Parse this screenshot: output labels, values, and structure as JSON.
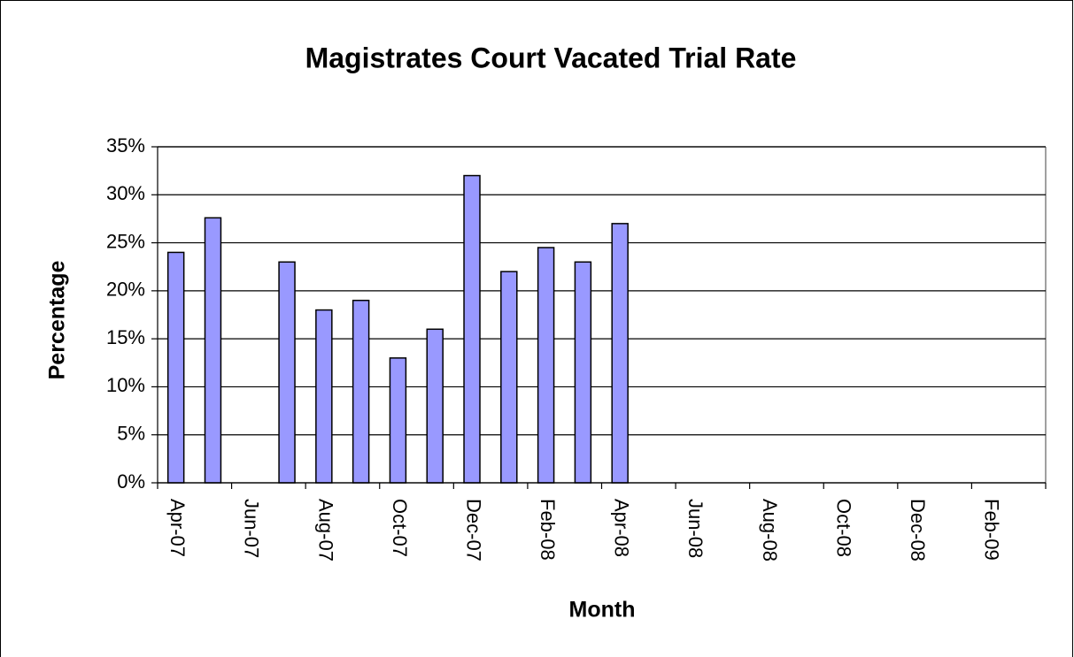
{
  "chart_data": {
    "type": "bar",
    "title": "Magistrates Court Vacated Trial Rate",
    "x_label": "Month",
    "y_label": "Percentage",
    "categories": [
      "Apr-07",
      null,
      "Jun-07",
      null,
      "Aug-07",
      null,
      "Oct-07",
      null,
      "Dec-07",
      null,
      "Feb-08",
      null,
      "Apr-08",
      null,
      "Jun-08",
      null,
      "Aug-08",
      null,
      "Oct-08",
      null,
      "Dec-08",
      null,
      "Feb-09",
      null
    ],
    "values": [
      24,
      27.6,
      null,
      23,
      18,
      19,
      13,
      16,
      32,
      22,
      24.5,
      23,
      27,
      null,
      null,
      null,
      null,
      null,
      null,
      null,
      null,
      null,
      null,
      null
    ],
    "color": "#9999ff",
    "ylim": [
      0,
      35
    ],
    "yticks": [
      {
        "value": 0,
        "label": "0%"
      },
      {
        "value": 5,
        "label": "5%"
      },
      {
        "value": 10,
        "label": "10%"
      },
      {
        "value": 15,
        "label": "15%"
      },
      {
        "value": 20,
        "label": "20%"
      },
      {
        "value": 25,
        "label": "25%"
      },
      {
        "value": 30,
        "label": "30%"
      },
      {
        "value": 35,
        "label": "35%"
      }
    ],
    "grid": true
  }
}
